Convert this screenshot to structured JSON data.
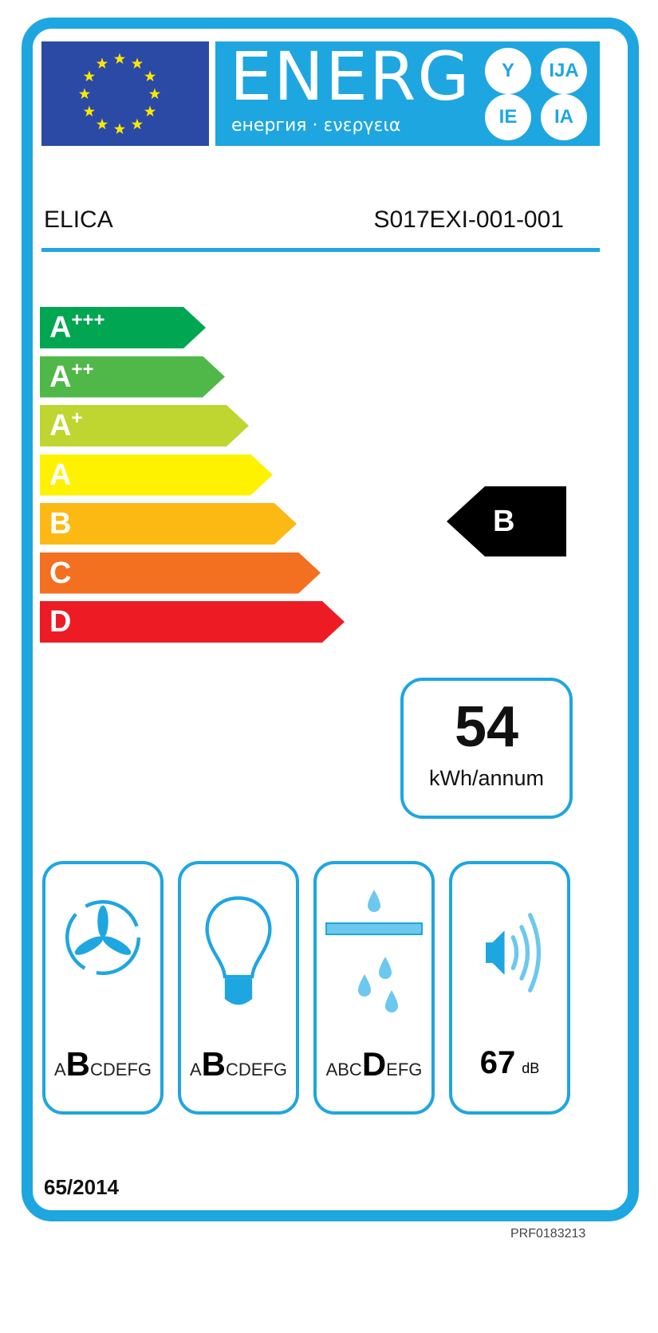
{
  "header": {
    "title": "ENERG",
    "subtitle": "енергия · ενεργεια",
    "suffixes": [
      "Y",
      "IJA",
      "IE",
      "IA"
    ],
    "flag_icon": "eu-flag-icon"
  },
  "supplier": "ELICA",
  "model": "S017EXI-001-001",
  "classes": [
    {
      "label": "A",
      "plus": "+++",
      "color": "#00a651"
    },
    {
      "label": "A",
      "plus": "++",
      "color": "#50b848"
    },
    {
      "label": "A",
      "plus": "+",
      "color": "#bed62f"
    },
    {
      "label": "A",
      "plus": "",
      "color": "#fff200"
    },
    {
      "label": "B",
      "plus": "",
      "color": "#fdb913"
    },
    {
      "label": "C",
      "plus": "",
      "color": "#f37021"
    },
    {
      "label": "D",
      "plus": "",
      "color": "#ed1c24"
    }
  ],
  "rating": "B",
  "consumption": {
    "value": "54",
    "unit": "kWh/annum"
  },
  "icons": {
    "fluid_dynamic": {
      "icon": "fan-icon",
      "pre": "A",
      "class": "B",
      "post": "CDEFG"
    },
    "lighting": {
      "icon": "light-bulb-icon",
      "pre": "A",
      "class": "B",
      "post": "CDEFG"
    },
    "grease_filtering": {
      "icon": "grease-filter-icon",
      "pre": "ABC",
      "class": "D",
      "post": "EFG"
    },
    "noise": {
      "icon": "speaker-icon",
      "value": "67",
      "unit": "dB"
    }
  },
  "regulation": "65/2014",
  "code": "PRF0183213",
  "accent": "#1ea6e0"
}
